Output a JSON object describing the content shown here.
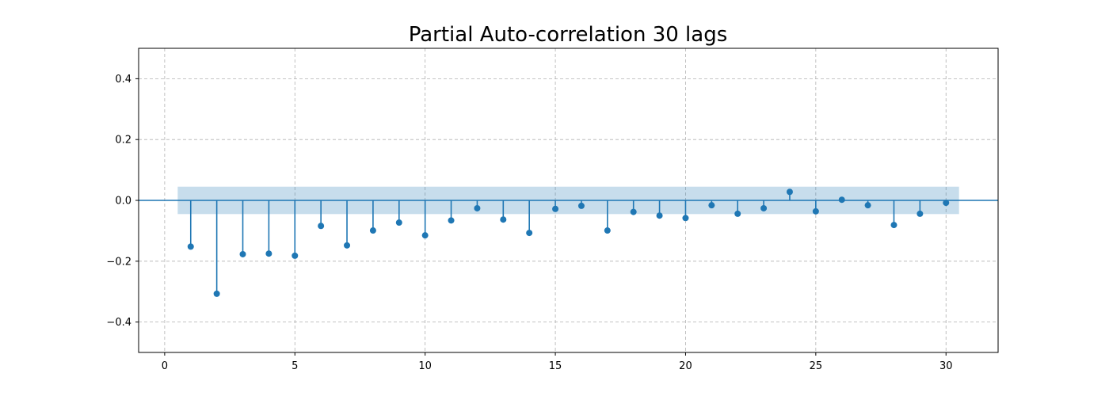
{
  "chart_data": {
    "type": "stem",
    "title": "Partial Auto-correlation 30 lags",
    "xlabel": "",
    "ylabel": "",
    "xlim": [
      -1,
      32
    ],
    "ylim": [
      -0.5,
      0.5
    ],
    "x_ticks": [
      0,
      5,
      10,
      15,
      20,
      25,
      30
    ],
    "y_ticks": [
      -0.4,
      -0.2,
      0.0,
      0.2,
      0.4
    ],
    "x_tick_labels": [
      "0",
      "5",
      "10",
      "15",
      "20",
      "25",
      "30"
    ],
    "y_tick_labels": [
      "−0.4",
      "−0.2",
      "0.0",
      "0.2",
      "0.4"
    ],
    "grid": true,
    "confidence_band": {
      "x_range": [
        0.5,
        30.5
      ],
      "lower": -0.045,
      "upper": 0.045
    },
    "lags": [
      1,
      2,
      3,
      4,
      5,
      6,
      7,
      8,
      9,
      10,
      11,
      12,
      13,
      14,
      15,
      16,
      17,
      18,
      19,
      20,
      21,
      22,
      23,
      24,
      25,
      26,
      27,
      28,
      29,
      30
    ],
    "values": [
      -0.152,
      -0.307,
      -0.177,
      -0.175,
      -0.182,
      -0.084,
      -0.148,
      -0.099,
      -0.073,
      -0.115,
      -0.066,
      -0.026,
      -0.063,
      -0.107,
      -0.028,
      -0.018,
      -0.099,
      -0.038,
      -0.05,
      -0.058,
      -0.016,
      -0.044,
      -0.026,
      0.028,
      -0.036,
      0.002,
      -0.016,
      -0.081,
      -0.044,
      -0.008
    ]
  },
  "colors": {
    "series": "#1f77b4",
    "grid": "#b0b0b0"
  }
}
